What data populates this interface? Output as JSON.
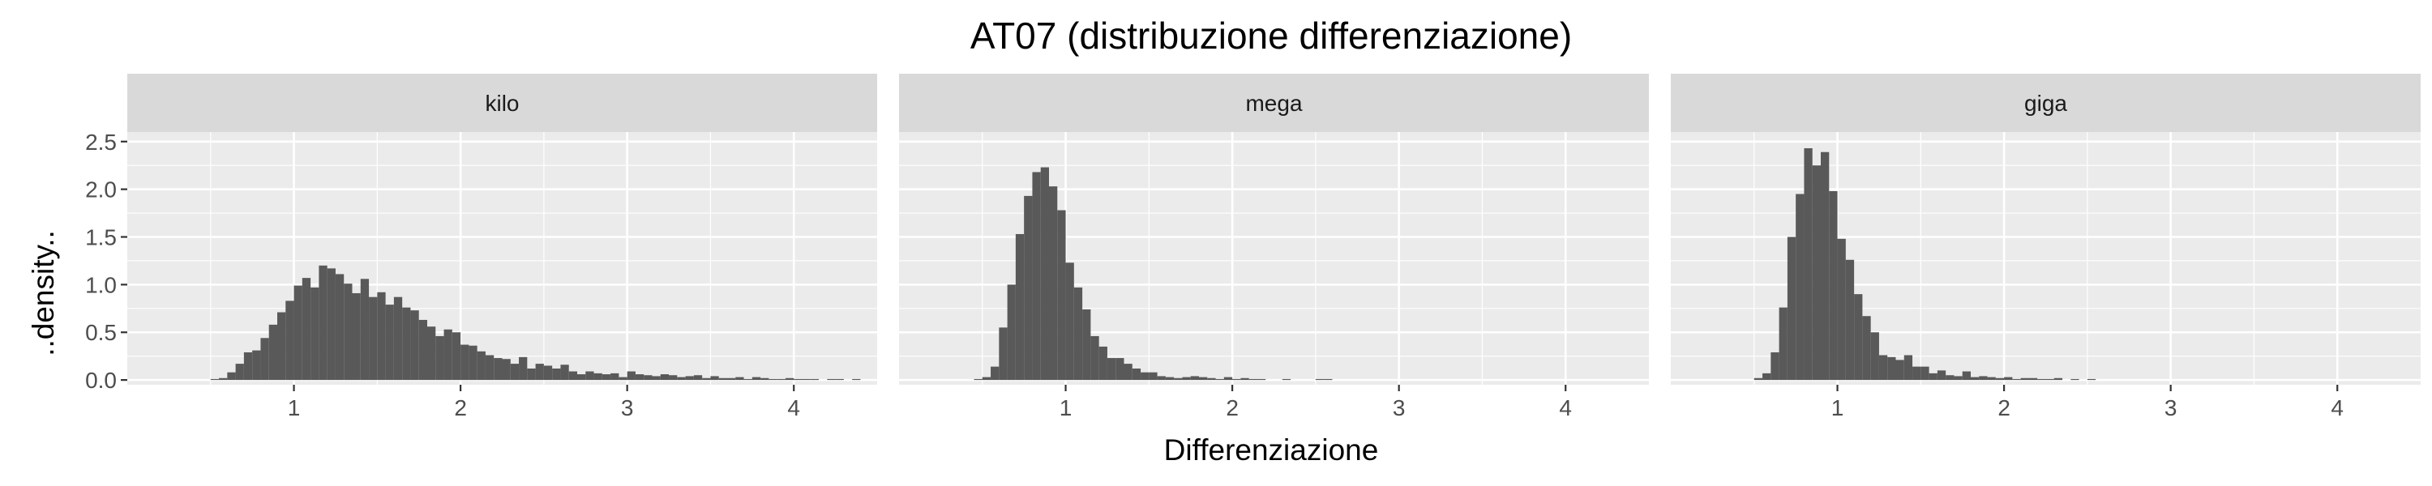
{
  "chart_data": {
    "type": "bar",
    "title": "AT07 (distribuzione differenziazione)",
    "xlabel": "Differenziazione",
    "ylabel": "..density..",
    "xlim": [
      0.0,
      4.5
    ],
    "ylim": [
      -0.05,
      2.6
    ],
    "x_ticks": [
      1,
      2,
      3,
      4
    ],
    "y_ticks": [
      0.0,
      0.5,
      1.0,
      1.5,
      2.0,
      2.5
    ],
    "y_tick_labels": [
      "0.0",
      "0.5",
      "1.0",
      "1.5",
      "2.0",
      "2.5"
    ],
    "bin_start": 0.0,
    "bin_width": 0.05,
    "grid": true,
    "legend": "none",
    "bar_color": "#595959",
    "panel_background": "#ebebeb",
    "strip_background": "#d9d9d9",
    "facets": [
      {
        "label": "kilo",
        "values": [
          0,
          0,
          0,
          0,
          0,
          0,
          0,
          0,
          0,
          0,
          0.01,
          0.02,
          0.08,
          0.17,
          0.29,
          0.31,
          0.44,
          0.58,
          0.71,
          0.83,
          0.99,
          1.07,
          0.97,
          1.2,
          1.17,
          1.11,
          1.01,
          0.91,
          1.06,
          0.87,
          0.92,
          0.79,
          0.87,
          0.76,
          0.73,
          0.63,
          0.56,
          0.46,
          0.53,
          0.5,
          0.37,
          0.36,
          0.3,
          0.26,
          0.23,
          0.22,
          0.17,
          0.24,
          0.12,
          0.17,
          0.15,
          0.12,
          0.16,
          0.09,
          0.06,
          0.09,
          0.07,
          0.06,
          0.07,
          0.03,
          0.09,
          0.06,
          0.05,
          0.04,
          0.06,
          0.05,
          0.03,
          0.04,
          0.05,
          0.02,
          0.04,
          0.02,
          0.02,
          0.03,
          0.01,
          0.03,
          0.02,
          0.01,
          0.01,
          0.02,
          0.01,
          0.01,
          0.01,
          0,
          0.01,
          0.01,
          0,
          0.01
        ]
      },
      {
        "label": "mega",
        "values": [
          0,
          0,
          0,
          0,
          0,
          0,
          0,
          0,
          0,
          0.01,
          0.03,
          0.14,
          0.55,
          1.0,
          1.53,
          1.93,
          2.18,
          2.23,
          2.03,
          1.78,
          1.23,
          0.97,
          0.74,
          0.46,
          0.35,
          0.23,
          0.23,
          0.17,
          0.12,
          0.08,
          0.08,
          0.04,
          0.03,
          0.02,
          0.03,
          0.04,
          0.03,
          0.02,
          0.01,
          0.03,
          0.01,
          0.02,
          0.01,
          0.01,
          0,
          0,
          0.01,
          0,
          0,
          0,
          0.01,
          0.01
        ]
      },
      {
        "label": "giga",
        "values": [
          0,
          0,
          0,
          0,
          0,
          0,
          0,
          0,
          0,
          0,
          0.02,
          0.07,
          0.29,
          0.76,
          1.5,
          1.95,
          2.43,
          2.25,
          2.39,
          1.98,
          1.48,
          1.26,
          0.9,
          0.67,
          0.5,
          0.26,
          0.24,
          0.21,
          0.26,
          0.14,
          0.14,
          0.07,
          0.1,
          0.05,
          0.04,
          0.09,
          0.03,
          0.04,
          0.03,
          0.02,
          0.03,
          0.01,
          0.02,
          0.02,
          0.01,
          0.01,
          0.02,
          0,
          0.01,
          0,
          0.01
        ]
      }
    ]
  }
}
